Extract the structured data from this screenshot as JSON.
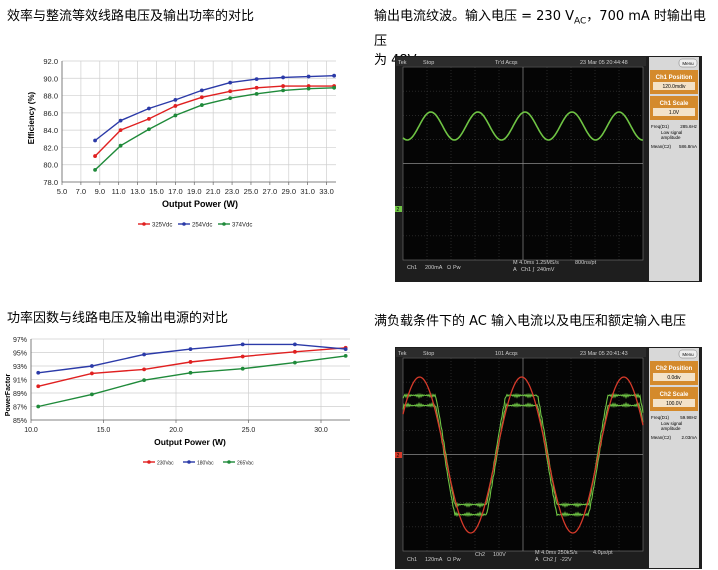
{
  "titles": {
    "tl": "效率与整流等效线路电压及输出功率的对比",
    "tr_line1_a": "输出电流纹波。输入电压 = 230 V",
    "tr_line1_sub": "AC",
    "tr_line1_b": "，700 mA 时输出电压",
    "tr_line2": "为 48V",
    "bl": "功率因数与线路电压及输出电源的对比",
    "br": "满负载条件下的 AC 输入电流以及电压和额定输入电压"
  },
  "chart_data": [
    {
      "type": "line",
      "title": "",
      "xlabel": "Output Power (W)",
      "ylabel": "Efficiency (%)",
      "xlim": [
        5.0,
        34.0
      ],
      "ylim": [
        78.0,
        92.0
      ],
      "xticks": [
        "5.0",
        "7.0",
        "9.0",
        "11.0",
        "13.0",
        "15.0",
        "17.0",
        "19.0",
        "21.0",
        "23.0",
        "25.0",
        "27.0",
        "29.0",
        "31.0",
        "33.0"
      ],
      "yticks": [
        "78.0",
        "80.0",
        "82.0",
        "84.0",
        "86.0",
        "88.0",
        "90.0",
        "92.0"
      ],
      "grid": true,
      "legend": "bottom",
      "series": [
        {
          "name": "325Vdc",
          "color": "#e02020",
          "x": [
            8.5,
            11.2,
            14.2,
            17.0,
            19.8,
            22.8,
            25.6,
            28.4,
            31.1,
            33.8
          ],
          "y": [
            81.0,
            84.0,
            85.3,
            86.8,
            87.8,
            88.5,
            88.9,
            89.1,
            89.1,
            89.1
          ]
        },
        {
          "name": "254Vdc",
          "color": "#2b3aa8",
          "x": [
            8.5,
            11.2,
            14.2,
            17.0,
            19.8,
            22.8,
            25.6,
            28.4,
            31.1,
            33.8
          ],
          "y": [
            82.8,
            85.1,
            86.5,
            87.5,
            88.6,
            89.5,
            89.9,
            90.1,
            90.2,
            90.3
          ]
        },
        {
          "name": "374Vdc",
          "color": "#1f8a3a",
          "x": [
            8.5,
            11.2,
            14.2,
            17.0,
            19.8,
            22.8,
            25.6,
            28.4,
            31.1,
            33.8
          ],
          "y": [
            79.4,
            82.2,
            84.1,
            85.7,
            86.9,
            87.7,
            88.2,
            88.6,
            88.8,
            88.9
          ]
        }
      ]
    },
    {
      "type": "line",
      "title": "",
      "xlabel": "Output Power (W)",
      "ylabel": "PowerFactor",
      "xlim": [
        10.0,
        32.0
      ],
      "ylim": [
        85,
        97
      ],
      "xticks": [
        "10.0",
        "15.0",
        "20.0",
        "25.0",
        "30.0"
      ],
      "xtick_values": [
        10,
        15,
        20,
        25,
        30
      ],
      "yticks": [
        "85%",
        "87%",
        "89%",
        "91%",
        "93%",
        "95%",
        "97%"
      ],
      "grid": true,
      "legend": "bottom",
      "series": [
        {
          "name": "230Vac",
          "color": "#e02020",
          "x": [
            10.5,
            14.2,
            17.8,
            21.0,
            24.6,
            28.2,
            31.7
          ],
          "y": [
            90.0,
            91.9,
            92.5,
            93.6,
            94.4,
            95.1,
            95.7
          ]
        },
        {
          "name": "180Vac",
          "color": "#2b3aa8",
          "x": [
            10.5,
            14.2,
            17.8,
            21.0,
            24.6,
            28.2,
            31.7
          ],
          "y": [
            92.0,
            93.0,
            94.7,
            95.5,
            96.2,
            96.2,
            95.5
          ]
        },
        {
          "name": "265Vac",
          "color": "#1f8a3a",
          "x": [
            10.5,
            14.2,
            17.8,
            21.0,
            24.6,
            28.2,
            31.7
          ],
          "y": [
            87.0,
            88.8,
            90.9,
            92.0,
            92.6,
            93.5,
            94.5
          ]
        }
      ]
    }
  ],
  "scope1": {
    "top_labels": [
      "Tek",
      "Stop",
      "Tr'd Acqs",
      "23 Mar 05 20:44:48"
    ],
    "menu": "Menu",
    "side": [
      {
        "title": "Ch1 Position",
        "value": "120.0mdiv"
      },
      {
        "title": "Ch1 Scale",
        "value": "1.0V"
      }
    ],
    "info": [
      "Freq(D1)",
      "285.6Hz",
      "Low signal",
      "amplitude",
      "Mean(C2)",
      "586.8mA"
    ],
    "bottom": [
      "Ch1",
      "200mA",
      "Ω",
      "Pw",
      "M 4.0ms 1.25MS/s",
      "800ns/pt",
      "A",
      "Ch1 ∫",
      "240mV"
    ],
    "marker": "2"
  },
  "scope2": {
    "top_labels": [
      "Tek",
      "Stop",
      "101 Acqs",
      "23 Mar 05 20:41:43"
    ],
    "menu": "Menu",
    "side": [
      {
        "title": "Ch2 Position",
        "value": "0.0div"
      },
      {
        "title": "Ch2 Scale",
        "value": "100.0V"
      }
    ],
    "info": [
      "Freq(D1)",
      "59.98Hz",
      "Low signal",
      "amplitude",
      "Mean(C2)",
      "2.03mA"
    ],
    "bottom": [
      "Ch1",
      "120mA",
      "Ω",
      "Pw",
      "Ch2",
      "100V",
      "M 4.0ms 250kS/s",
      "4.0μs/pt",
      "A",
      "Ch2 ∫",
      "-22V"
    ],
    "marker": "2"
  }
}
